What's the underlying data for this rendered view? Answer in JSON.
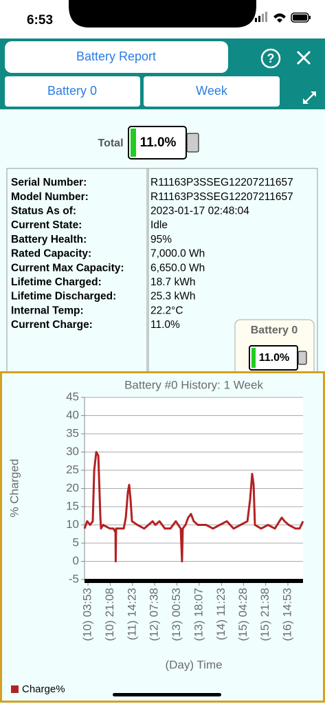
{
  "status": {
    "time": "6:53"
  },
  "header": {
    "title": "Battery Report",
    "battery_button": "Battery 0",
    "period_button": "Week"
  },
  "total": {
    "label": "Total",
    "value": "11.0%"
  },
  "info": [
    {
      "label": "Serial Number:",
      "value": "R11163P3SSEG12207211657"
    },
    {
      "label": "Model Number:",
      "value": "R11163P3SSEG12207211657"
    },
    {
      "label": "Status As of:",
      "value": "2023-01-17 02:48:04"
    },
    {
      "label": "Current State:",
      "value": "Idle"
    },
    {
      "label": "Battery Health:",
      "value": "95%"
    },
    {
      "label": "Rated Capacity:",
      "value": "7,000.0 Wh"
    },
    {
      "label": "Current Max Capacity:",
      "value": "6,650.0 Wh"
    },
    {
      "label": "Lifetime Charged:",
      "value": "18.7 kWh"
    },
    {
      "label": "Lifetime Discharged:",
      "value": "25.3 kWh"
    },
    {
      "label": "Internal Temp:",
      "value": "22.2°C"
    },
    {
      "label": "Current Charge:",
      "value": "11.0%"
    }
  ],
  "battery_widget": {
    "label": "Battery 0",
    "value": "11.0%"
  },
  "chart_data": {
    "type": "line",
    "title": "Battery #0 History: 1 Week",
    "x_label": "(Day) Time",
    "y_label": "% Charged",
    "x": [
      1.2,
      3.3,
      5.5,
      7.6,
      8.7,
      10.3,
      11.9,
      13.5,
      14.0,
      15.6,
      20.9,
      23.6,
      25.2,
      25.4,
      25.7,
      29.4,
      31.6,
      33.2,
      34.8,
      35.8,
      36.9,
      38.0,
      42.2,
      47.5,
      54.0,
      56.1,
      59.3,
      63.5,
      67.8,
      72.0,
      75.8,
      76.8,
      77.4,
      79.5,
      81.6,
      83.7,
      85.9,
      89.1,
      95.5,
      100.8,
      106.1,
      111.5,
      116.8,
      122.1,
      127.5,
      129.6,
      131.2,
      132.3,
      133.3,
      138.1,
      143.5,
      148.8,
      154.1,
      156.3,
      159.5,
      164.8,
      168.0,
      170.6
    ],
    "series": [
      {
        "name": "Charge%",
        "color": "#b22222",
        "values": [
          9,
          11,
          10,
          11,
          25,
          30,
          29,
          12,
          9,
          10,
          9,
          9,
          8,
          0,
          9,
          9,
          9,
          12,
          19,
          21,
          17,
          11,
          10,
          9,
          11,
          10,
          11,
          9,
          9,
          11,
          9,
          0,
          9,
          10,
          12,
          13,
          11,
          10,
          10,
          9,
          10,
          11,
          9,
          10,
          11,
          17,
          24,
          21,
          10,
          9,
          10,
          9,
          12,
          11,
          10,
          9,
          9,
          11
        ]
      }
    ],
    "xlim": [
      1.2,
      170.6
    ],
    "xticks": [
      {
        "value": 3.88,
        "label": "(10) 03:53"
      },
      {
        "value": 21.13,
        "label": "(10) 21:08"
      },
      {
        "value": 38.38,
        "label": "(11) 14:23"
      },
      {
        "value": 55.63,
        "label": "(12) 07:38"
      },
      {
        "value": 72.88,
        "label": "(13) 00:53"
      },
      {
        "value": 90.12,
        "label": "(13) 18:07"
      },
      {
        "value": 107.38,
        "label": "(14) 11:23"
      },
      {
        "value": 124.47,
        "label": "(15) 04:28"
      },
      {
        "value": 141.63,
        "label": "(15) 21:38"
      },
      {
        "value": 158.88,
        "label": "(16) 14:53"
      }
    ],
    "ylim": [
      -5,
      45
    ],
    "yticks": [
      -5,
      0,
      5,
      10,
      15,
      20,
      25,
      30,
      35,
      40,
      45
    ],
    "grid": true,
    "legend": "bottom-left"
  }
}
